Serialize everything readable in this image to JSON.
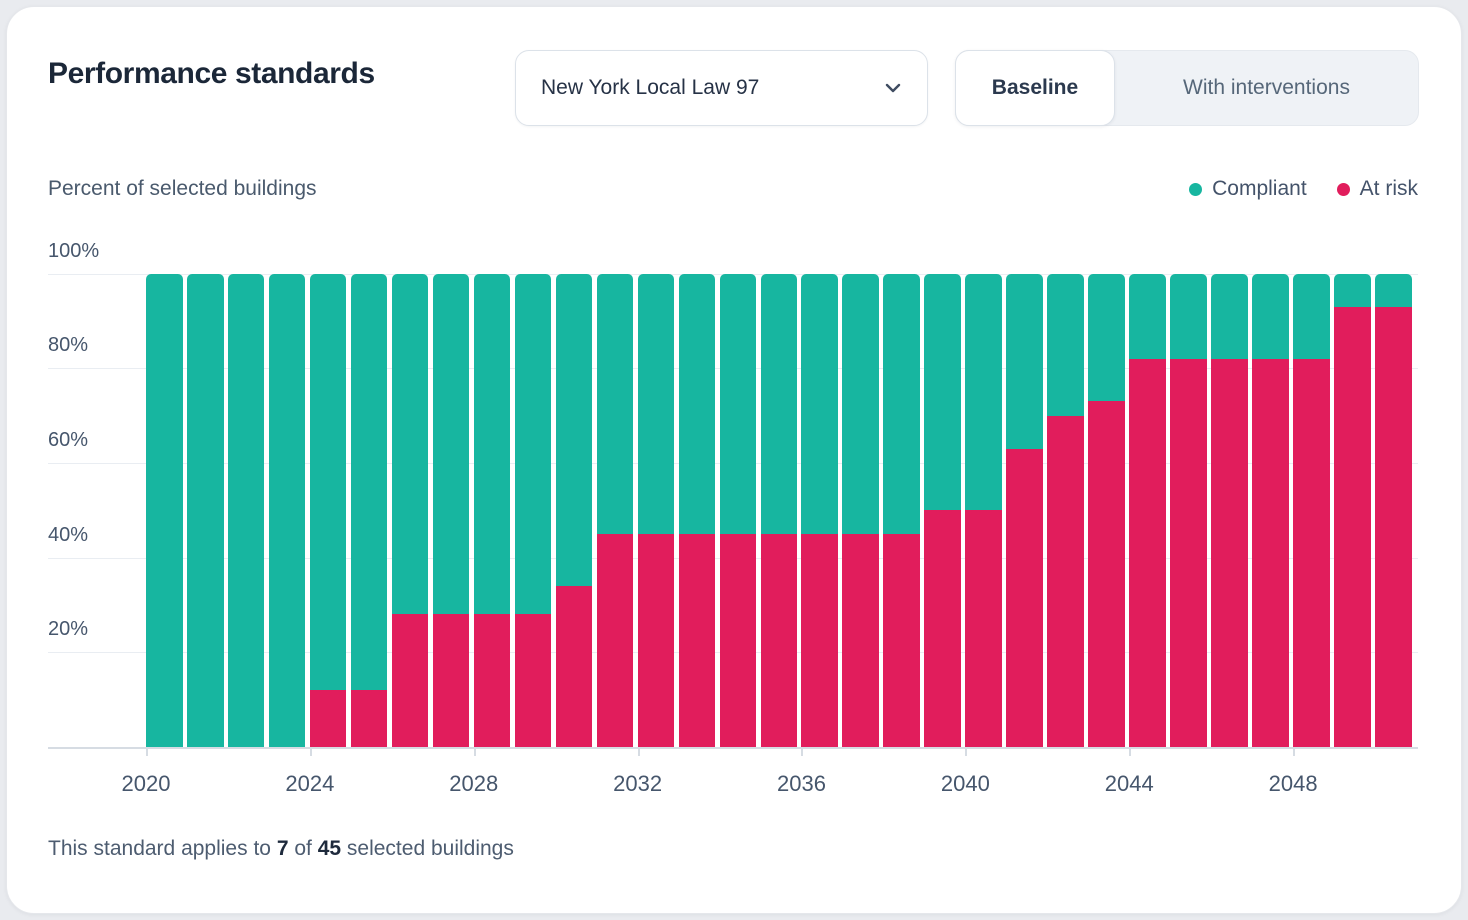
{
  "header": {
    "title": "Performance standards",
    "standard_dropdown": {
      "value": "New York Local Law 97"
    },
    "scenario_toggle": {
      "options": [
        "Baseline",
        "With interventions"
      ],
      "active": "Baseline"
    }
  },
  "legend": [
    {
      "label": "Compliant",
      "color": "#17b6a0"
    },
    {
      "label": "At risk",
      "color": "#e11d5c"
    }
  ],
  "chart_data": {
    "type": "bar",
    "stacked": true,
    "title": "Percent of selected buildings",
    "x": [
      2020,
      2021,
      2022,
      2023,
      2024,
      2025,
      2026,
      2027,
      2028,
      2029,
      2030,
      2031,
      2032,
      2033,
      2034,
      2035,
      2036,
      2037,
      2038,
      2039,
      2040,
      2041,
      2042,
      2043,
      2044,
      2045,
      2046,
      2047,
      2048,
      2049,
      2050
    ],
    "series": [
      {
        "name": "Compliant",
        "color": "#17b6a0",
        "values": [
          100,
          100,
          100,
          100,
          88,
          88,
          72,
          72,
          72,
          72,
          66,
          55,
          55,
          55,
          55,
          55,
          55,
          55,
          55,
          50,
          50,
          37,
          30,
          27,
          18,
          18,
          18,
          18,
          18,
          7,
          7
        ]
      },
      {
        "name": "At risk",
        "color": "#e11d5c",
        "values": [
          0,
          0,
          0,
          0,
          12,
          12,
          28,
          28,
          28,
          28,
          34,
          45,
          45,
          45,
          45,
          45,
          45,
          45,
          45,
          50,
          50,
          63,
          70,
          73,
          82,
          82,
          82,
          82,
          82,
          93,
          93
        ]
      }
    ],
    "ylim": [
      0,
      100
    ],
    "yticks": [
      "20%",
      "40%",
      "60%",
      "80%",
      "100%"
    ],
    "xticks": [
      2020,
      2024,
      2028,
      2032,
      2036,
      2040,
      2044,
      2048
    ],
    "grid": "horizontal",
    "legend_position": "top-right"
  },
  "footer": {
    "prefix": "This standard applies to",
    "applicable_count": "7",
    "of": "of",
    "total_count": "45",
    "suffix": "selected buildings"
  }
}
